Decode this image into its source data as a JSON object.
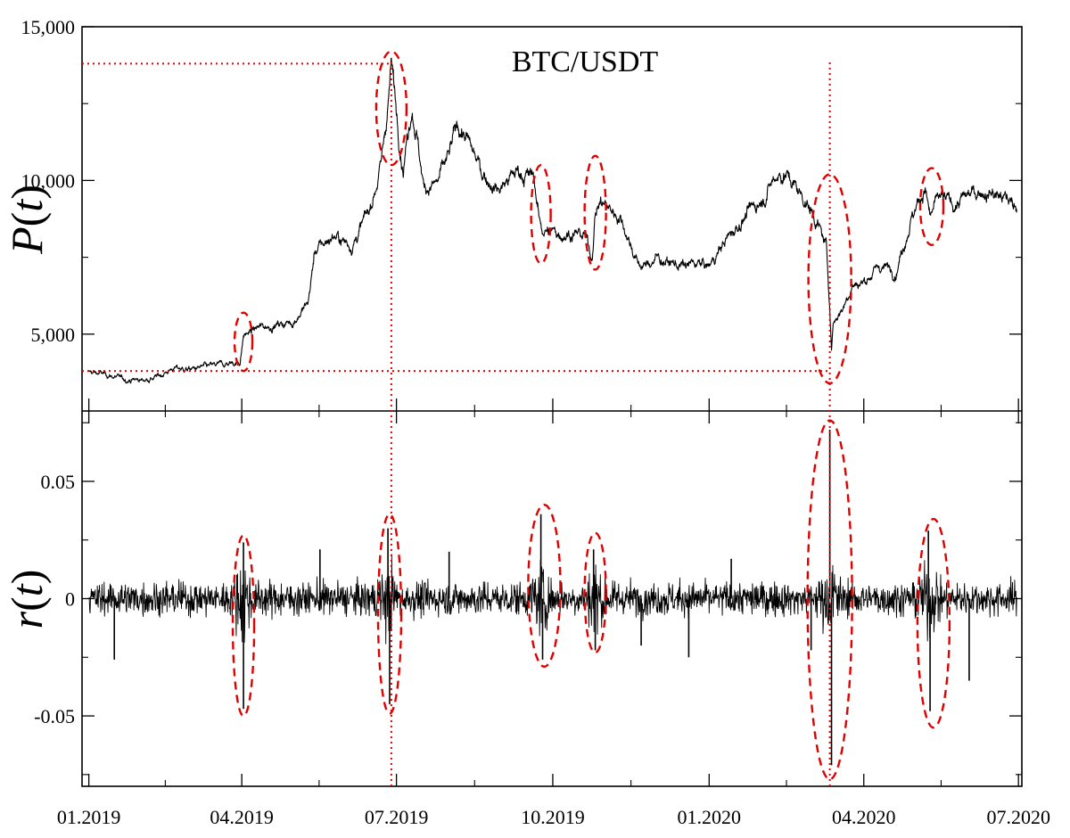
{
  "chart_data": [
    {
      "type": "line",
      "title": "BTC/USDT",
      "ylabel": "P(t)",
      "ylabel_var": "t",
      "ylim": [
        2500,
        15000
      ],
      "yticks": [
        {
          "value": 5000,
          "label": "5,000"
        },
        {
          "value": 10000,
          "label": "10,000"
        },
        {
          "value": 15000,
          "label": "15,000"
        }
      ],
      "grid": false,
      "series": [
        {
          "color": "#000000",
          "x": [
            "2019-01-01",
            "2019-01-10",
            "2019-01-20",
            "2019-02-01",
            "2019-02-10",
            "2019-02-20",
            "2019-03-01",
            "2019-03-15",
            "2019-03-31",
            "2019-04-02",
            "2019-04-10",
            "2019-04-20",
            "2019-05-01",
            "2019-05-10",
            "2019-05-14",
            "2019-05-25",
            "2019-06-05",
            "2019-06-15",
            "2019-06-22",
            "2019-06-26",
            "2019-06-28",
            "2019-07-02",
            "2019-07-05",
            "2019-07-10",
            "2019-07-13",
            "2019-07-17",
            "2019-07-25",
            "2019-08-01",
            "2019-08-06",
            "2019-08-10",
            "2019-08-20",
            "2019-08-30",
            "2019-09-10",
            "2019-09-20",
            "2019-09-23",
            "2019-09-25",
            "2019-10-01",
            "2019-10-10",
            "2019-10-20",
            "2019-10-24",
            "2019-10-26",
            "2019-10-29",
            "2019-11-10",
            "2019-11-20",
            "2019-11-25",
            "2019-12-01",
            "2019-12-10",
            "2019-12-18",
            "2019-12-25",
            "2020-01-01",
            "2020-01-10",
            "2020-01-20",
            "2020-02-01",
            "2020-02-10",
            "2020-02-15",
            "2020-02-25",
            "2020-03-05",
            "2020-03-10",
            "2020-03-12",
            "2020-03-13",
            "2020-03-14",
            "2020-03-20",
            "2020-03-25",
            "2020-04-01",
            "2020-04-10",
            "2020-04-20",
            "2020-04-29",
            "2020-05-07",
            "2020-05-10",
            "2020-05-15",
            "2020-05-25",
            "2020-06-01",
            "2020-06-10",
            "2020-06-20",
            "2020-06-30"
          ],
          "y": [
            3750,
            3700,
            3550,
            3500,
            3600,
            3900,
            3850,
            3950,
            4100,
            4950,
            5200,
            5300,
            5400,
            6000,
            7700,
            8200,
            7900,
            9000,
            10500,
            12500,
            13800,
            11800,
            10500,
            12500,
            11500,
            9800,
            9900,
            10800,
            11800,
            11500,
            10300,
            9700,
            10300,
            10100,
            8700,
            8400,
            8300,
            8300,
            8200,
            7500,
            9000,
            9300,
            8800,
            7300,
            7200,
            7500,
            7300,
            7200,
            7300,
            7200,
            8000,
            8700,
            9400,
            10200,
            10200,
            9500,
            8600,
            7800,
            5900,
            4500,
            5400,
            5900,
            6600,
            6700,
            7200,
            7100,
            8800,
            9800,
            8800,
            9400,
            9200,
            9500,
            9700,
            9500,
            9200
          ]
        }
      ],
      "annotations": {
        "highlight_dates": [
          "2019-04-02",
          "2019-06-26",
          "2019-09-24",
          "2019-10-26",
          "2020-03-12",
          "2020-05-10"
        ],
        "price_reference_lines": [
          13800,
          3800
        ]
      }
    },
    {
      "type": "line",
      "xlabel": "",
      "ylabel": "r(t)",
      "ylabel_var": "t",
      "ylim": [
        -0.08,
        0.08
      ],
      "yticks": [
        {
          "value": -0.05,
          "label": "-0.05"
        },
        {
          "value": 0,
          "label": "0"
        },
        {
          "value": 0.05,
          "label": "0.05"
        }
      ],
      "xlim": [
        "2018-12-28",
        "2020-07-03"
      ],
      "xticks": [
        {
          "value": "2019-01-01",
          "label": "01.2019"
        },
        {
          "value": "2019-04-01",
          "label": "04.2019"
        },
        {
          "value": "2019-07-01",
          "label": "07.2019"
        },
        {
          "value": "2019-10-01",
          "label": "10.2019"
        },
        {
          "value": "2020-01-01",
          "label": "01.2020"
        },
        {
          "value": "2020-04-01",
          "label": "04.2020"
        },
        {
          "value": "2020-07-01",
          "label": "07.2020"
        }
      ],
      "grid": false,
      "typical_amplitude": 0.006,
      "spikes": [
        {
          "x": "2019-04-02",
          "y": 0.024
        },
        {
          "x": "2019-04-02",
          "y": -0.047
        },
        {
          "x": "2019-06-26",
          "y": 0.03
        },
        {
          "x": "2019-06-27",
          "y": -0.045
        },
        {
          "x": "2019-09-24",
          "y": 0.036
        },
        {
          "x": "2019-09-25",
          "y": -0.026
        },
        {
          "x": "2019-10-25",
          "y": 0.021
        },
        {
          "x": "2019-10-26",
          "y": -0.022
        },
        {
          "x": "2020-03-12",
          "y": 0.072
        },
        {
          "x": "2020-03-13",
          "y": -0.071
        },
        {
          "x": "2020-05-09",
          "y": 0.029
        },
        {
          "x": "2020-05-10",
          "y": -0.048
        },
        {
          "x": "2019-01-16",
          "y": -0.026
        },
        {
          "x": "2019-05-17",
          "y": 0.021
        },
        {
          "x": "2019-08-01",
          "y": 0.02
        },
        {
          "x": "2019-12-20",
          "y": -0.025
        },
        {
          "x": "2020-01-14",
          "y": 0.017
        },
        {
          "x": "2020-03-01",
          "y": -0.022
        },
        {
          "x": "2020-06-02",
          "y": -0.035
        },
        {
          "x": "2019-11-22",
          "y": -0.02
        }
      ],
      "annotations": {
        "highlight_dates": [
          "2019-04-02",
          "2019-06-26",
          "2019-09-24",
          "2019-10-26",
          "2020-03-12",
          "2020-05-10"
        ]
      }
    }
  ]
}
